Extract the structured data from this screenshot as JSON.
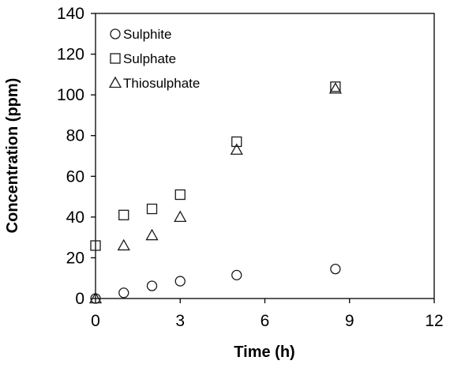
{
  "chart_data": {
    "type": "scatter",
    "title": "",
    "xlabel": "Time (h)",
    "ylabel": "Concentration (ppm)",
    "xlim": [
      0,
      12
    ],
    "ylim": [
      0,
      140
    ],
    "xticks": [
      0,
      3,
      6,
      9,
      12
    ],
    "yticks": [
      0,
      20,
      40,
      60,
      80,
      100,
      120,
      140
    ],
    "xtick_labels": [
      "0",
      "3",
      "6",
      "9",
      "12"
    ],
    "ytick_labels": [
      "0",
      "20",
      "40",
      "60",
      "80",
      "100",
      "120",
      "140"
    ],
    "grid": false,
    "legend_position": "top-left",
    "series": [
      {
        "name": "Sulphite",
        "marker": "circle",
        "x": [
          0,
          1,
          2,
          3,
          5,
          8.5
        ],
        "y": [
          0,
          2.8,
          6.2,
          8.5,
          11.5,
          14.5
        ]
      },
      {
        "name": "Sulphate",
        "marker": "square",
        "x": [
          0,
          1,
          2,
          3,
          5,
          8.5
        ],
        "y": [
          26,
          41,
          44,
          51,
          77,
          104
        ]
      },
      {
        "name": "Thiosulphate",
        "marker": "triangle",
        "x": [
          0,
          1,
          2,
          3,
          5,
          8.5
        ],
        "y": [
          0,
          26,
          31,
          40,
          73,
          103
        ]
      }
    ]
  }
}
